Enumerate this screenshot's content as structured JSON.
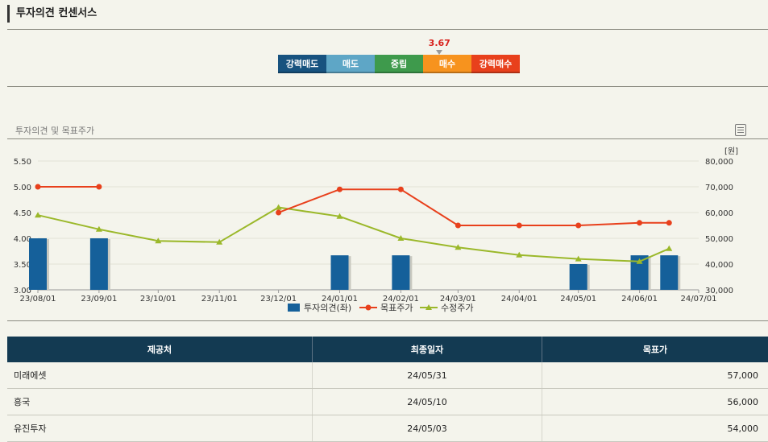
{
  "section_title": "투자의견 컨센서스",
  "consensus": {
    "value": "3.67",
    "score": 3.67,
    "scale_min": 1,
    "scale_max": 5,
    "segments": [
      {
        "label": "강력매도",
        "color": "#17527f"
      },
      {
        "label": "매도",
        "color": "#5ea6c6"
      },
      {
        "label": "중립",
        "color": "#3e9a4c"
      },
      {
        "label": "매수",
        "color": "#f7931e"
      },
      {
        "label": "강력매수",
        "color": "#e8401c"
      }
    ]
  },
  "chart_section_title": "투자의견 및 목표주가",
  "chart_data": {
    "type": "bar",
    "x_ticks": [
      "23/08/01",
      "23/09/01",
      "23/10/01",
      "23/11/01",
      "23/12/01",
      "24/01/01",
      "24/02/01",
      "24/03/01",
      "24/04/01",
      "24/05/01",
      "24/06/01",
      "24/07/01"
    ],
    "y_left": {
      "range": [
        3.0,
        5.5
      ],
      "ticks": [
        "3.00",
        "3.50",
        "4.00",
        "4.50",
        "5.00",
        "5.50"
      ]
    },
    "y_right": {
      "unit": "[원]",
      "range": [
        30000,
        80000
      ],
      "ticks": [
        "30,000",
        "40,000",
        "50,000",
        "60,000",
        "70,000",
        "80,000"
      ]
    },
    "grid": true,
    "legend_position": "bottom",
    "series": [
      {
        "name": "투자의견(좌)",
        "kind": "bar",
        "axis": "left",
        "color": "#15609a",
        "points": [
          {
            "x": "23/08/01",
            "y": 4.0
          },
          {
            "x": "23/09/01",
            "y": 4.0
          },
          {
            "x": "24/01/01",
            "y": 3.67
          },
          {
            "x": "24/02/01",
            "y": 3.67
          },
          {
            "x": "24/05/01",
            "y": 3.5
          },
          {
            "x": "24/06/01",
            "y": 3.67
          },
          {
            "x": "24/06/16",
            "y": 3.67
          }
        ]
      },
      {
        "name": "목표주가",
        "kind": "line",
        "axis": "right",
        "color": "#e8401c",
        "marker": "circle",
        "segments": [
          [
            {
              "x": "23/08/01",
              "y": 70000
            },
            {
              "x": "23/09/01",
              "y": 70000
            }
          ],
          [
            {
              "x": "23/12/01",
              "y": 60000
            },
            {
              "x": "24/01/01",
              "y": 69000
            },
            {
              "x": "24/02/01",
              "y": 69000
            },
            {
              "x": "24/03/01",
              "y": 55000
            },
            {
              "x": "24/04/01",
              "y": 55000
            },
            {
              "x": "24/05/01",
              "y": 55000
            },
            {
              "x": "24/06/01",
              "y": 56000
            },
            {
              "x": "24/06/16",
              "y": 56000
            }
          ]
        ]
      },
      {
        "name": "수정주가",
        "kind": "line",
        "axis": "right",
        "color": "#9bb82a",
        "marker": "triangle",
        "segments": [
          [
            {
              "x": "23/08/01",
              "y": 59000
            },
            {
              "x": "23/09/01",
              "y": 53500
            },
            {
              "x": "23/10/01",
              "y": 49000
            },
            {
              "x": "23/11/01",
              "y": 48500
            },
            {
              "x": "23/12/01",
              "y": 62000
            },
            {
              "x": "24/01/01",
              "y": 58500
            },
            {
              "x": "24/02/01",
              "y": 50000
            },
            {
              "x": "24/03/01",
              "y": 46500
            },
            {
              "x": "24/04/01",
              "y": 43500
            },
            {
              "x": "24/05/01",
              "y": 42000
            },
            {
              "x": "24/06/01",
              "y": 41000
            },
            {
              "x": "24/06/16",
              "y": 46000
            }
          ]
        ]
      }
    ]
  },
  "table": {
    "headers": [
      "제공처",
      "최종일자",
      "목표가"
    ],
    "rows": [
      [
        "미래에셋",
        "24/05/31",
        "57,000"
      ],
      [
        "흥국",
        "24/05/10",
        "56,000"
      ],
      [
        "유진투자",
        "24/05/03",
        "54,000"
      ]
    ]
  }
}
